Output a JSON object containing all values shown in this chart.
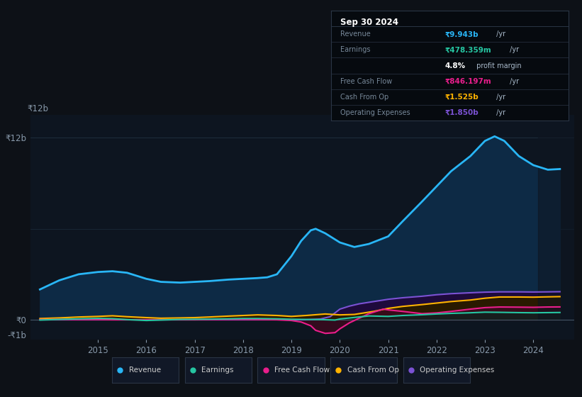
{
  "bg_color": "#0d1117",
  "plot_bg_color": "#0d1520",
  "grid_color": "#1e2d3d",
  "ylim": [
    -1300000000.0,
    13500000000.0
  ],
  "xlabel_years": [
    2015,
    2016,
    2017,
    2018,
    2019,
    2020,
    2021,
    2022,
    2023,
    2024
  ],
  "series": {
    "Revenue": {
      "color": "#29b6f6",
      "fill_color": "#0d2a45",
      "linewidth": 2.0,
      "x": [
        2013.8,
        2014.2,
        2014.6,
        2015.0,
        2015.3,
        2015.6,
        2016.0,
        2016.3,
        2016.7,
        2017.0,
        2017.3,
        2017.7,
        2018.0,
        2018.3,
        2018.5,
        2018.7,
        2019.0,
        2019.2,
        2019.4,
        2019.5,
        2019.7,
        2019.9,
        2020.0,
        2020.3,
        2020.6,
        2021.0,
        2021.3,
        2021.7,
        2022.0,
        2022.3,
        2022.7,
        2023.0,
        2023.2,
        2023.4,
        2023.7,
        2024.0,
        2024.3,
        2024.55
      ],
      "y": [
        2000000000.0,
        2600000000.0,
        3000000000.0,
        3150000000.0,
        3200000000.0,
        3100000000.0,
        2700000000.0,
        2500000000.0,
        2450000000.0,
        2500000000.0,
        2550000000.0,
        2650000000.0,
        2700000000.0,
        2750000000.0,
        2800000000.0,
        3000000000.0,
        4200000000.0,
        5200000000.0,
        5900000000.0,
        6000000000.0,
        5700000000.0,
        5300000000.0,
        5100000000.0,
        4800000000.0,
        5000000000.0,
        5500000000.0,
        6500000000.0,
        7800000000.0,
        8800000000.0,
        9800000000.0,
        10800000000.0,
        11800000000.0,
        12100000000.0,
        11800000000.0,
        10800000000.0,
        10200000000.0,
        9900000000.0,
        9943000000.0
      ]
    },
    "Earnings": {
      "color": "#26c6a2",
      "fill_color": "#0a2520",
      "linewidth": 1.5,
      "x": [
        2013.8,
        2014.2,
        2014.6,
        2015.0,
        2015.3,
        2015.6,
        2016.0,
        2016.3,
        2016.7,
        2017.0,
        2017.3,
        2017.7,
        2018.0,
        2018.3,
        2018.7,
        2019.0,
        2019.3,
        2019.6,
        2019.9,
        2020.0,
        2020.3,
        2020.6,
        2021.0,
        2021.3,
        2021.7,
        2022.0,
        2022.3,
        2022.7,
        2023.0,
        2023.3,
        2023.7,
        2024.0,
        2024.3,
        2024.55
      ],
      "y": [
        -20000000.0,
        20000000.0,
        60000000.0,
        90000000.0,
        70000000.0,
        10000000.0,
        -50000000.0,
        -20000000.0,
        20000000.0,
        30000000.0,
        40000000.0,
        60000000.0,
        80000000.0,
        80000000.0,
        60000000.0,
        30000000.0,
        20000000.0,
        10000000.0,
        -20000000.0,
        50000000.0,
        150000000.0,
        250000000.0,
        220000000.0,
        280000000.0,
        330000000.0,
        380000000.0,
        420000000.0,
        460000000.0,
        500000000.0,
        490000000.0,
        470000000.0,
        460000000.0,
        470000000.0,
        478000000.0
      ]
    },
    "FreeCashFlow": {
      "color": "#e91e8c",
      "fill_color": "#3a0a1e",
      "linewidth": 1.5,
      "x": [
        2013.8,
        2014.2,
        2014.6,
        2015.0,
        2015.3,
        2015.6,
        2016.0,
        2016.3,
        2016.7,
        2017.0,
        2017.3,
        2017.7,
        2018.0,
        2018.3,
        2018.7,
        2019.0,
        2019.2,
        2019.4,
        2019.5,
        2019.7,
        2019.9,
        2020.0,
        2020.2,
        2020.4,
        2020.6,
        2020.9,
        2021.0,
        2021.3,
        2021.7,
        2022.0,
        2022.3,
        2022.7,
        2023.0,
        2023.3,
        2023.7,
        2024.0,
        2024.3,
        2024.55
      ],
      "y": [
        10000000.0,
        20000000.0,
        10000000.0,
        10000000.0,
        0.0,
        0.0,
        0.0,
        0.0,
        0.0,
        0.0,
        10000000.0,
        20000000.0,
        20000000.0,
        10000000.0,
        0.0,
        -50000000.0,
        -150000000.0,
        -400000000.0,
        -700000000.0,
        -900000000.0,
        -850000000.0,
        -600000000.0,
        -200000000.0,
        100000000.0,
        400000000.0,
        700000000.0,
        650000000.0,
        550000000.0,
        400000000.0,
        450000000.0,
        550000000.0,
        700000000.0,
        800000000.0,
        840000000.0,
        830000000.0,
        820000000.0,
        840000000.0,
        846000000.0
      ]
    },
    "CashFromOp": {
      "color": "#ffb300",
      "fill_color": "#2a1a00",
      "linewidth": 1.5,
      "x": [
        2013.8,
        2014.2,
        2014.6,
        2015.0,
        2015.3,
        2015.6,
        2016.0,
        2016.3,
        2016.7,
        2017.0,
        2017.3,
        2017.7,
        2018.0,
        2018.3,
        2018.7,
        2019.0,
        2019.3,
        2019.7,
        2020.0,
        2020.3,
        2020.7,
        2021.0,
        2021.3,
        2021.7,
        2022.0,
        2022.3,
        2022.7,
        2023.0,
        2023.3,
        2023.7,
        2024.0,
        2024.3,
        2024.55
      ],
      "y": [
        80000000.0,
        120000000.0,
        180000000.0,
        220000000.0,
        260000000.0,
        200000000.0,
        140000000.0,
        100000000.0,
        120000000.0,
        140000000.0,
        180000000.0,
        240000000.0,
        280000000.0,
        320000000.0,
        280000000.0,
        220000000.0,
        280000000.0,
        380000000.0,
        320000000.0,
        350000000.0,
        550000000.0,
        750000000.0,
        880000000.0,
        1000000000.0,
        1100000000.0,
        1200000000.0,
        1300000000.0,
        1420000000.0,
        1500000000.0,
        1500000000.0,
        1490000000.0,
        1510000000.0,
        1525000000.0
      ]
    },
    "OperatingExpenses": {
      "color": "#7b52d4",
      "fill_color": "#1e0a3c",
      "linewidth": 1.5,
      "x": [
        2013.8,
        2014.2,
        2014.6,
        2015.0,
        2015.3,
        2015.6,
        2016.0,
        2016.3,
        2016.7,
        2017.0,
        2017.3,
        2017.7,
        2018.0,
        2018.3,
        2018.7,
        2019.0,
        2019.3,
        2019.6,
        2019.8,
        2020.0,
        2020.2,
        2020.4,
        2020.6,
        2020.9,
        2021.0,
        2021.3,
        2021.7,
        2022.0,
        2022.3,
        2022.7,
        2023.0,
        2023.3,
        2023.7,
        2024.0,
        2024.3,
        2024.55
      ],
      "y": [
        0.0,
        0.0,
        0.0,
        0.0,
        0.0,
        0.0,
        0.0,
        0.0,
        0.0,
        0.0,
        0.0,
        0.0,
        0.0,
        0.0,
        0.0,
        0.0,
        0.0,
        50000000.0,
        200000000.0,
        700000000.0,
        900000000.0,
        1050000000.0,
        1150000000.0,
        1300000000.0,
        1350000000.0,
        1450000000.0,
        1550000000.0,
        1650000000.0,
        1720000000.0,
        1780000000.0,
        1820000000.0,
        1840000000.0,
        1840000000.0,
        1830000000.0,
        1840000000.0,
        1850000000.0
      ]
    }
  },
  "legend": [
    {
      "label": "Revenue",
      "color": "#29b6f6"
    },
    {
      "label": "Earnings",
      "color": "#26c6a2"
    },
    {
      "label": "Free Cash Flow",
      "color": "#e91e8c"
    },
    {
      "label": "Cash From Op",
      "color": "#ffb300"
    },
    {
      "label": "Operating Expenses",
      "color": "#7b52d4"
    }
  ],
  "infobox": {
    "title": "Sep 30 2024",
    "rows": [
      {
        "label": "Revenue",
        "bold_value": "₹9.943b",
        "suffix": " /yr",
        "value_color": "#29b6f6"
      },
      {
        "label": "Earnings",
        "bold_value": "₹478.359m",
        "suffix": " /yr",
        "value_color": "#26c6a2"
      },
      {
        "label": "",
        "bold_value": "4.8%",
        "suffix": " profit margin",
        "value_color": "#ffffff"
      },
      {
        "label": "Free Cash Flow",
        "bold_value": "₹846.197m",
        "suffix": " /yr",
        "value_color": "#e91e8c"
      },
      {
        "label": "Cash From Op",
        "bold_value": "₹1.525b",
        "suffix": " /yr",
        "value_color": "#ffb300"
      },
      {
        "label": "Operating Expenses",
        "bold_value": "₹1.850b",
        "suffix": " /yr",
        "value_color": "#7b52d4"
      }
    ]
  }
}
